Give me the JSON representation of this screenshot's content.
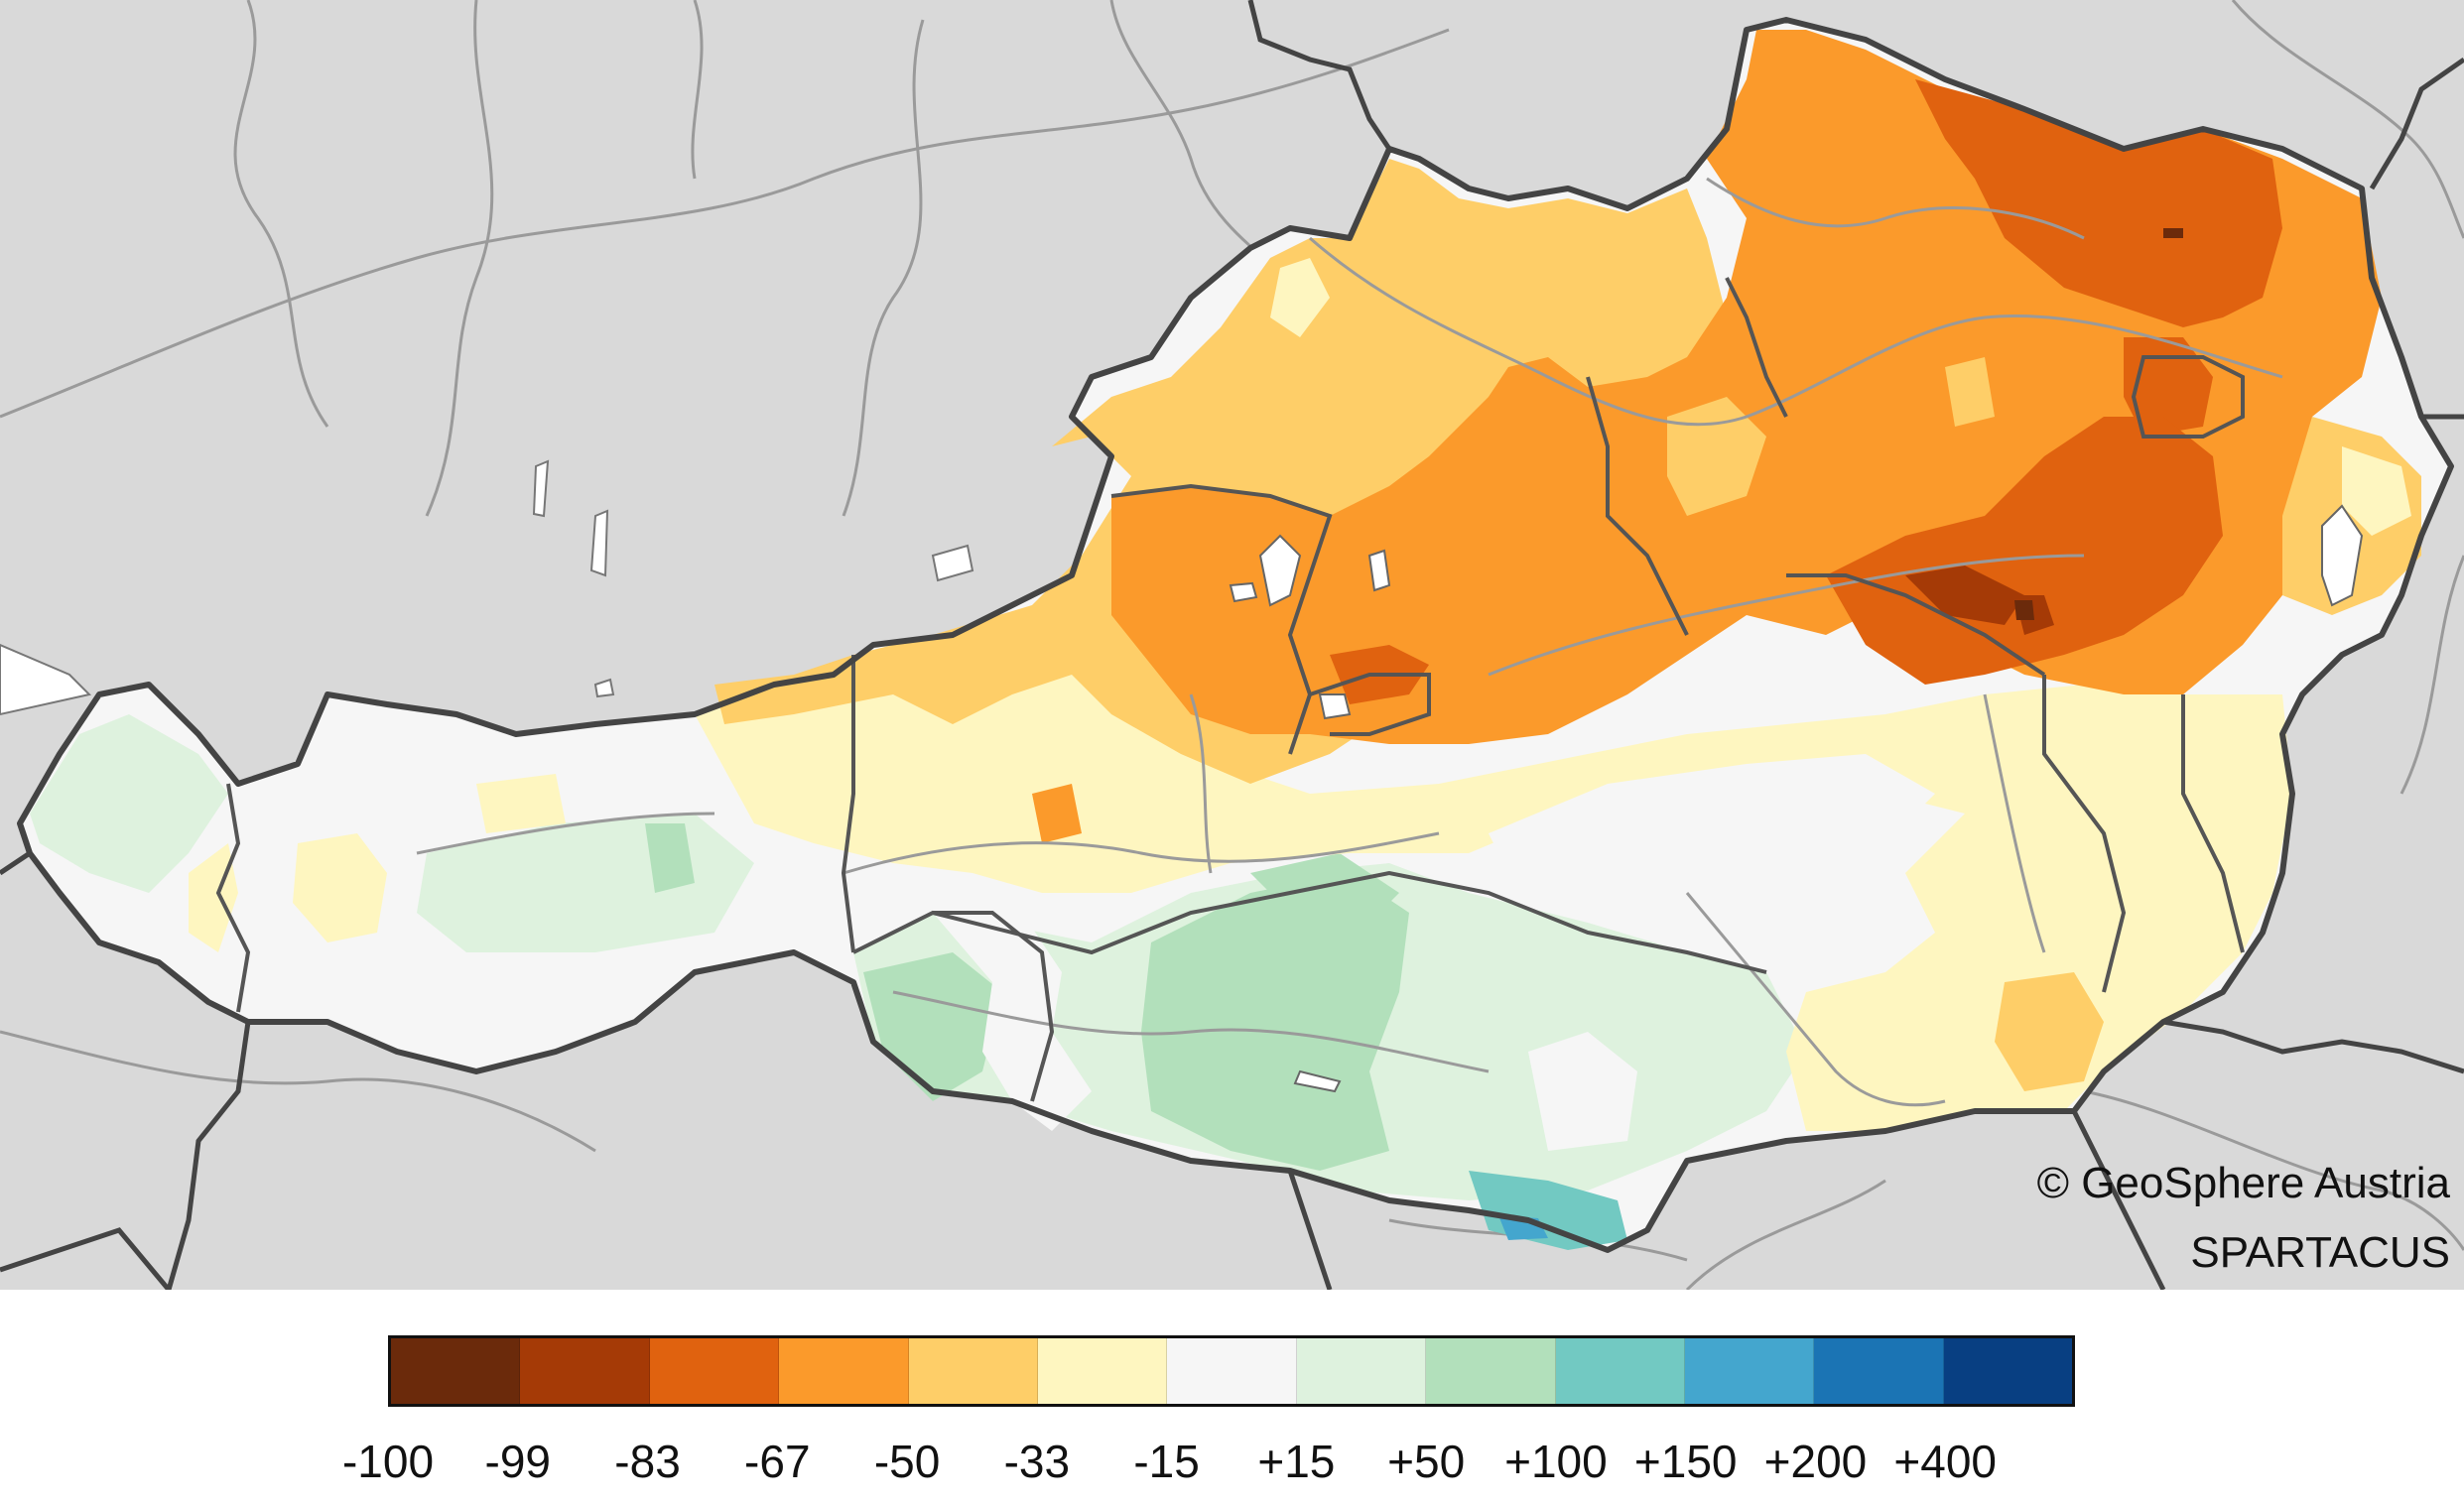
{
  "credits": {
    "line1": "© GeoSphere Austria",
    "line2": "SPARTACUS"
  },
  "legend": {
    "colors": [
      "#6b2a0b",
      "#a53a06",
      "#e0620f",
      "#fb9a2b",
      "#fece68",
      "#fef6c0",
      "#f6f6f6",
      "#def2de",
      "#b2e0bb",
      "#72c9c2",
      "#44a6ce",
      "#1b74b4",
      "#083f82"
    ],
    "tick_labels": [
      "-100",
      "-99",
      "-83",
      "-67",
      "-50",
      "-33",
      "-15",
      "+15",
      "+50",
      "+100",
      "+150",
      "+200",
      "+400"
    ]
  },
  "map": {
    "background_color": "#d9d9d9",
    "border_color": "#444444",
    "river_color": "#9a9a9a",
    "lake_color": "#ffffff"
  }
}
